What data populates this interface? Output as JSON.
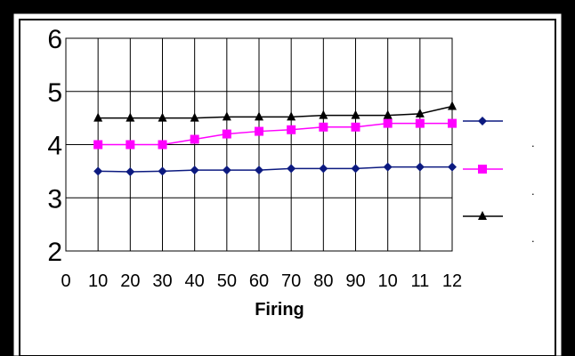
{
  "chart_data": {
    "type": "line",
    "title": "",
    "xlabel": "Firing",
    "ylabel": "",
    "x": [
      10,
      20,
      30,
      40,
      50,
      60,
      70,
      80,
      90,
      100,
      110,
      120
    ],
    "x_tick_labels": [
      "0",
      "10",
      "20",
      "30",
      "40",
      "50",
      "60",
      "70",
      "80",
      "90",
      "10",
      "11",
      "12"
    ],
    "y_tick_labels": [
      "2",
      "3",
      "4",
      "5",
      "6"
    ],
    "xlim": [
      0,
      120
    ],
    "ylim": [
      2,
      6
    ],
    "grid": true,
    "legend_placement": "right",
    "series": [
      {
        "values": [
          3.5,
          3.49,
          3.5,
          3.52,
          3.52,
          3.52,
          3.55,
          3.55,
          3.55,
          3.58,
          3.58,
          3.58
        ],
        "color": "#0c1a80",
        "marker": "diamond"
      },
      {
        "values": [
          4.0,
          4.0,
          4.0,
          4.1,
          4.2,
          4.25,
          4.28,
          4.33,
          4.33,
          4.4,
          4.4,
          4.4
        ],
        "color": "#ff00ff",
        "marker": "square"
      },
      {
        "values": [
          4.5,
          4.5,
          4.5,
          4.5,
          4.52,
          4.52,
          4.52,
          4.55,
          4.55,
          4.55,
          4.58,
          4.72
        ],
        "color": "#000000",
        "marker": "triangle"
      }
    ],
    "legend_text": [
      ".",
      ".",
      "."
    ]
  }
}
